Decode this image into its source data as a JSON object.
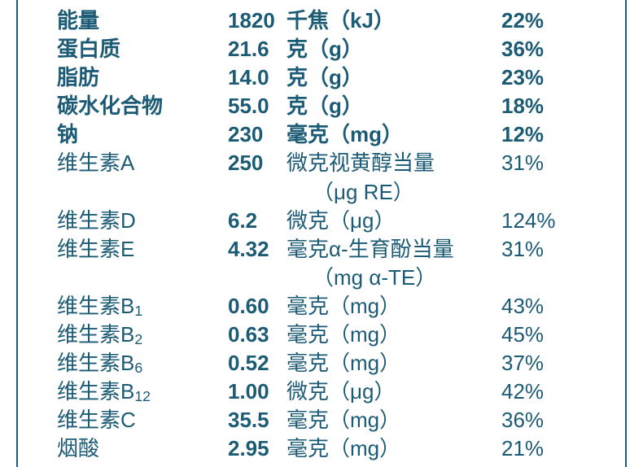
{
  "colors": {
    "text": "#1c5b75",
    "background": "#ffffff",
    "border": "#1c5b75"
  },
  "typography": {
    "base_fontsize": 26,
    "line_height": 1.35,
    "bold_weight": 700,
    "normal_weight": 400
  },
  "layout": {
    "col_name_width": 210,
    "col_value_width": 68,
    "col_unit_width": 268,
    "col_pct_width": 100
  },
  "rows": [
    {
      "name": "能量",
      "value": "1820",
      "unit": "千焦（kJ）",
      "pct": "22%",
      "bold": true
    },
    {
      "name": "蛋白质",
      "value": "21.6",
      "unit": "克（g）",
      "pct": "36%",
      "bold": true
    },
    {
      "name": "脂肪",
      "value": "14.0",
      "unit": "克（g）",
      "pct": "23%",
      "bold": true
    },
    {
      "name": "碳水化合物",
      "value": "55.0",
      "unit": "克（g）",
      "pct": "18%",
      "bold": true
    },
    {
      "name": "钠",
      "value": "230",
      "unit": "毫克（mg）",
      "pct": "12%",
      "bold": true
    },
    {
      "name": "维生素A",
      "value": "250",
      "unit": "微克视黄醇当量",
      "unit2": "（μg RE）",
      "pct": "31%",
      "bold": false
    },
    {
      "name": "维生素D",
      "value": "6.2",
      "unit": "微克（μg）",
      "pct": "124%",
      "bold": false
    },
    {
      "name": "维生素E",
      "value": "4.32",
      "unit": "毫克α-生育酚当量",
      "unit2": "（mg α-TE）",
      "pct": "31%",
      "bold": false
    },
    {
      "name": "维生素B",
      "sub": "1",
      "value": "0.60",
      "unit": "毫克（mg）",
      "pct": "43%",
      "bold": false
    },
    {
      "name": "维生素B",
      "sub": "2",
      "value": "0.63",
      "unit": "毫克（mg）",
      "pct": "45%",
      "bold": false
    },
    {
      "name": "维生素B",
      "sub": "6",
      "value": "0.52",
      "unit": "毫克（mg）",
      "pct": "37%",
      "bold": false
    },
    {
      "name": "维生素B",
      "sub": "12",
      "value": "1.00",
      "unit": "微克（μg）",
      "pct": "42%",
      "bold": false
    },
    {
      "name": "维生素C",
      "value": "35.5",
      "unit": "毫克（mg）",
      "pct": "36%",
      "bold": false
    },
    {
      "name": "烟酸",
      "value": "2.95",
      "unit": "毫克（mg）",
      "pct": "21%",
      "bold": false
    }
  ]
}
